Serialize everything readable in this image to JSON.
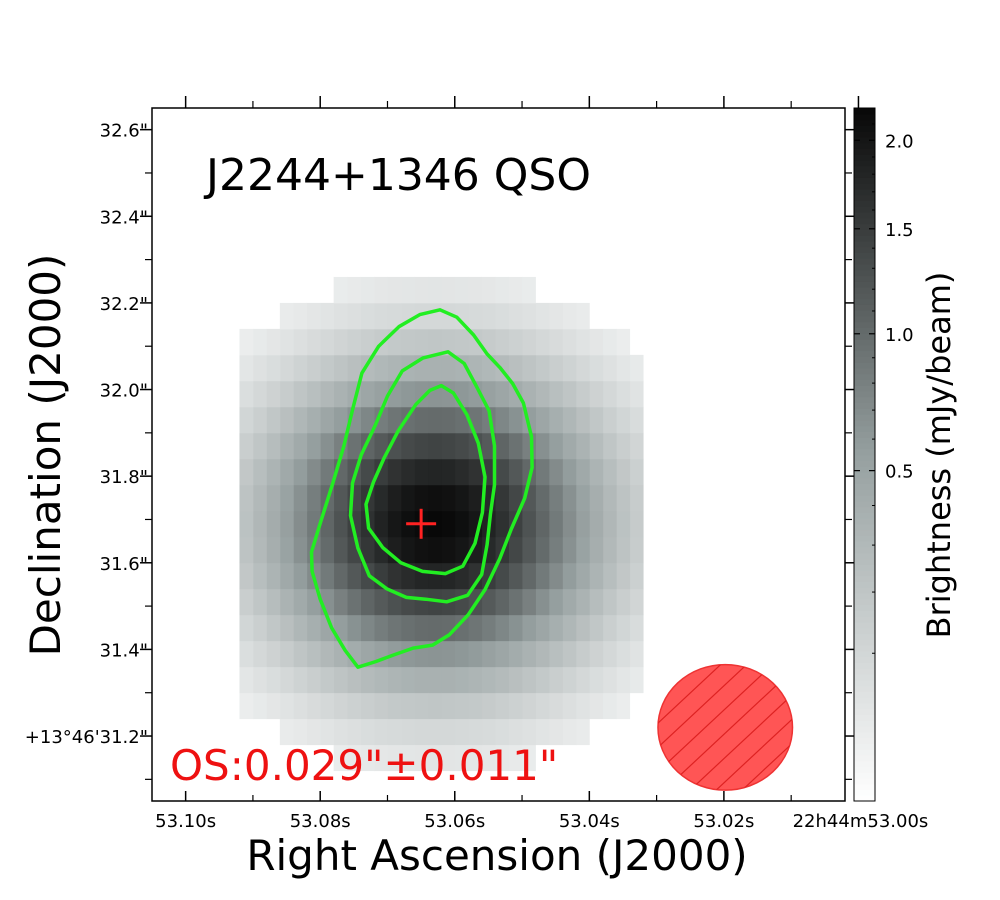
{
  "chart_data": {
    "type": "heatmap",
    "title": "J2244+1346 QSO",
    "xlabel": "Right Ascension (J2000)",
    "ylabel": "Declination (J2000)",
    "colorbar_label": "Brightness (mJy/beam)",
    "offset_annotation": "OS:0.029\"±0.011\"",
    "x_axis": {
      "unit": "RA seconds (22h44m53.xx s)",
      "range": [
        53.105,
        53.002
      ],
      "major_ticks": [
        53.1,
        53.08,
        53.06,
        53.04,
        53.02,
        53.0
      ],
      "tick_labels": [
        "53.10s",
        "53.08s",
        "53.06s",
        "53.04s",
        "53.02s",
        "22h44m53.00s"
      ]
    },
    "y_axis": {
      "unit": "Dec arcsec (+13°46'xx\")",
      "range": [
        31.05,
        32.65
      ],
      "major_ticks": [
        31.2,
        31.4,
        31.6,
        31.8,
        32.0,
        32.2,
        32.4,
        32.6
      ],
      "tick_labels": [
        "+13°46'31.2\"",
        "31.4\"",
        "31.6\"",
        "31.8\"",
        "32.0\"",
        "32.2\"",
        "32.4\"",
        "32.6\""
      ]
    },
    "colorbar": {
      "scale": "sqrt",
      "range": [
        0.0,
        2.2
      ],
      "ticks": [
        0.5,
        1.0,
        1.5,
        2.0
      ],
      "tick_labels": [
        "0.5",
        "1.0",
        "1.5",
        "2.0"
      ]
    },
    "image": {
      "center_ra": 53.063,
      "center_dec": 31.69,
      "peak_mjy": 2.2,
      "fwhm_ra_s": 0.031,
      "fwhm_dec_arcsec": 0.45,
      "pixel_ra_s": 0.002,
      "pixel_dec_arcsec": 0.06
    },
    "source_position": {
      "ra": 53.065,
      "dec": 31.69
    },
    "contours": [
      {
        "name": "outer",
        "points": [
          [
            53.0622,
            32.184
          ],
          [
            53.0597,
            32.167
          ],
          [
            53.0572,
            32.126
          ],
          [
            53.0552,
            32.082
          ],
          [
            53.0533,
            32.051
          ],
          [
            53.0514,
            32.014
          ],
          [
            53.0498,
            31.969
          ],
          [
            53.0486,
            31.891
          ],
          [
            53.0485,
            31.82
          ],
          [
            53.0496,
            31.749
          ],
          [
            53.0516,
            31.678
          ],
          [
            53.0533,
            31.61
          ],
          [
            53.0555,
            31.538
          ],
          [
            53.058,
            31.48
          ],
          [
            53.0608,
            31.434
          ],
          [
            53.0633,
            31.41
          ],
          [
            53.0662,
            31.403
          ],
          [
            53.0691,
            31.387
          ],
          [
            53.0717,
            31.372
          ],
          [
            53.0744,
            31.359
          ],
          [
            53.0763,
            31.398
          ],
          [
            53.0783,
            31.45
          ],
          [
            53.08,
            31.516
          ],
          [
            53.0812,
            31.58
          ],
          [
            53.0813,
            31.625
          ],
          [
            53.08,
            31.691
          ],
          [
            53.0782,
            31.78
          ],
          [
            53.0765,
            31.869
          ],
          [
            53.0752,
            31.953
          ],
          [
            53.0738,
            32.038
          ],
          [
            53.0713,
            32.1
          ],
          [
            53.0683,
            32.145
          ],
          [
            53.0652,
            32.173
          ]
        ]
      },
      {
        "name": "middle",
        "points": [
          [
            53.061,
            32.087
          ],
          [
            53.0586,
            32.06
          ],
          [
            53.0567,
            32.005
          ],
          [
            53.0549,
            31.951
          ],
          [
            53.0541,
            31.87
          ],
          [
            53.0541,
            31.78
          ],
          [
            53.0547,
            31.712
          ],
          [
            53.0552,
            31.642
          ],
          [
            53.056,
            31.573
          ],
          [
            53.0581,
            31.525
          ],
          [
            53.0612,
            31.51
          ],
          [
            53.0643,
            31.516
          ],
          [
            53.0672,
            31.52
          ],
          [
            53.0701,
            31.54
          ],
          [
            53.0727,
            31.57
          ],
          [
            53.0744,
            31.634
          ],
          [
            53.0755,
            31.709
          ],
          [
            53.0752,
            31.784
          ],
          [
            53.0739,
            31.849
          ],
          [
            53.0718,
            31.918
          ],
          [
            53.07,
            31.985
          ],
          [
            53.0678,
            32.043
          ],
          [
            53.0647,
            32.073
          ]
        ]
      },
      {
        "name": "inner",
        "points": [
          [
            53.062,
            32.009
          ],
          [
            53.0602,
            31.992
          ],
          [
            53.0582,
            31.942
          ],
          [
            53.0565,
            31.876
          ],
          [
            53.0555,
            31.798
          ],
          [
            53.0559,
            31.716
          ],
          [
            53.057,
            31.645
          ],
          [
            53.0588,
            31.592
          ],
          [
            53.0614,
            31.575
          ],
          [
            53.0648,
            31.58
          ],
          [
            53.068,
            31.6
          ],
          [
            53.0707,
            31.635
          ],
          [
            53.0728,
            31.68
          ],
          [
            53.0732,
            31.735
          ],
          [
            53.0721,
            31.786
          ],
          [
            53.0705,
            31.842
          ],
          [
            53.0684,
            31.905
          ],
          [
            53.0658,
            31.965
          ],
          [
            53.0637,
            31.998
          ]
        ]
      }
    ],
    "beam": {
      "center_ra": 53.0198,
      "center_dec": 31.22,
      "width_ra_s": 0.02,
      "height_dec_arcsec": 0.29,
      "angle_deg": 0
    },
    "colors": {
      "contour": "#22ee22",
      "marker": "#ff2222",
      "annotation": "#ee1111",
      "beam_fill": "#ff5555",
      "beam_edge": "#ee3333"
    }
  }
}
